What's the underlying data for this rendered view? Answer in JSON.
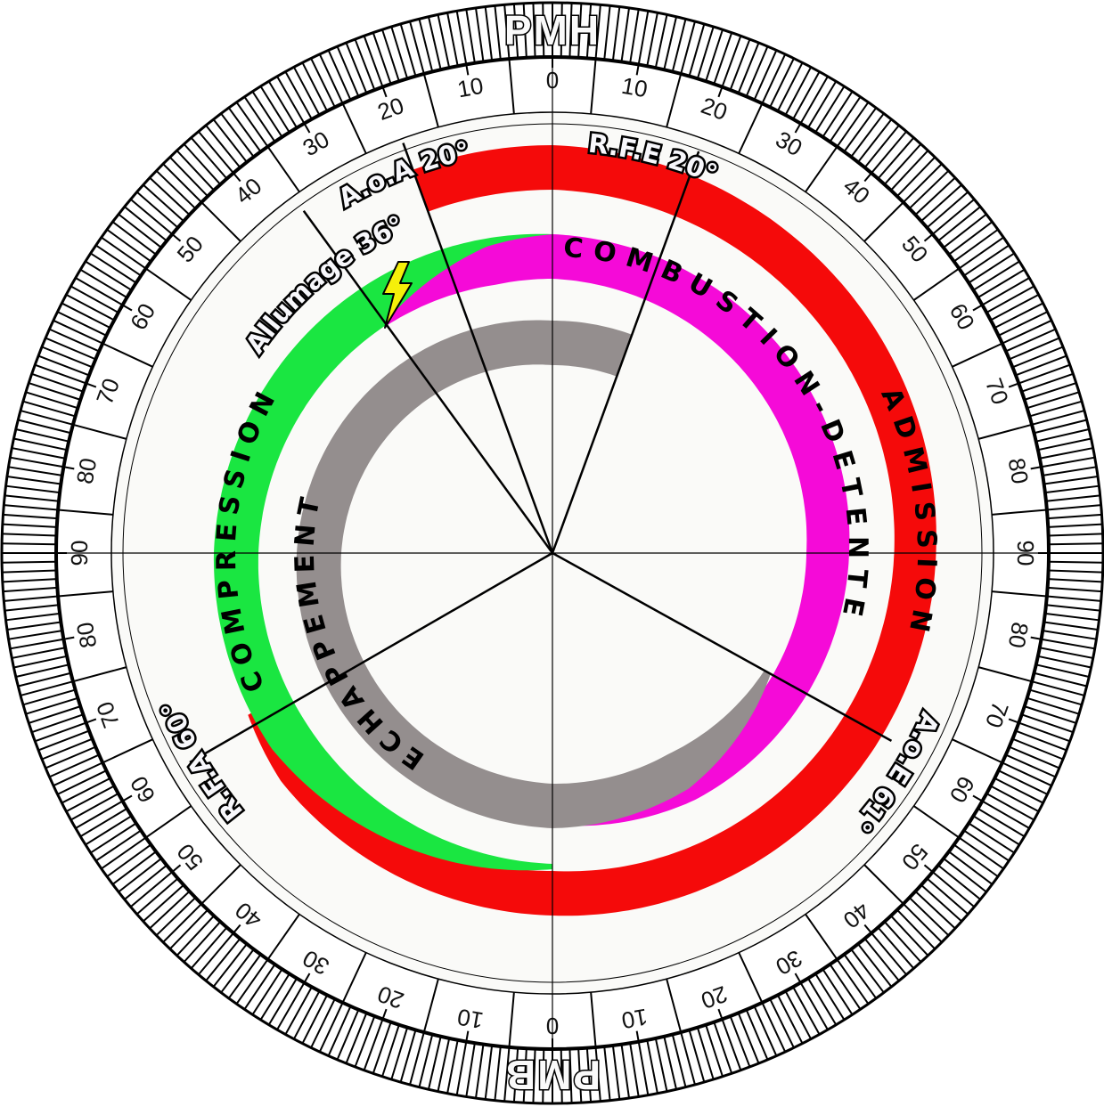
{
  "dead_centers": {
    "top": "PMH",
    "bottom": "PMB"
  },
  "scale": {
    "top_labels": [
      "0",
      "10",
      "20",
      "30",
      "40",
      "50",
      "60",
      "70",
      "80",
      "90"
    ],
    "bottom_labels": [
      "0",
      "10",
      "20",
      "30",
      "40",
      "50",
      "60",
      "70",
      "80",
      "90"
    ]
  },
  "events": {
    "aoa": {
      "label": "A.o.A 20°",
      "degrees": 20
    },
    "rfe": {
      "label": "R.F.E 20°",
      "degrees": 20
    },
    "allumage": {
      "label": "Allumage 36°",
      "degrees": 36
    },
    "aoe": {
      "label": "A.o.E 61°",
      "degrees": 61
    },
    "rfa": {
      "label": "R.F.A 60°",
      "degrees": 60
    }
  },
  "phases": {
    "admission": {
      "label": "ADMISSION",
      "color": "#f50a0a"
    },
    "compression": {
      "label": "COMPRESSION",
      "color": "#1ae641"
    },
    "combustion": {
      "label": "COMBUSTION-DETENTE",
      "color": "#f50ad8"
    },
    "echappement": {
      "label": "ECHAPPEMENT",
      "color": "#948e8e"
    }
  },
  "ignition_icon": "lightning-bolt-icon"
}
